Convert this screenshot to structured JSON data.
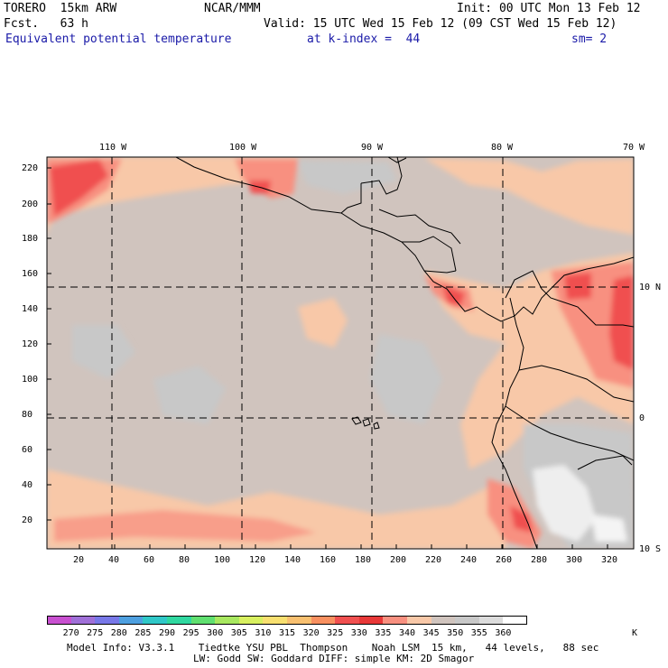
{
  "header": {
    "model": "TORERO  15km ARW",
    "org": "NCAR/MMM",
    "init": "Init: 00 UTC Mon 13 Feb 12",
    "fcst": "Fcst.   63 h",
    "valid": "Valid: 15 UTC Wed 15 Feb 12 (09 CST Wed 15 Feb 12)",
    "field": "Equivalent potential temperature",
    "level": "at k-index =  44",
    "smooth": "sm= 2"
  },
  "axes": {
    "top_lon": [
      "110 W",
      "100 W",
      "90 W",
      "80 W",
      "70 W"
    ],
    "right_lat": [
      "10 N",
      "0",
      "10 S"
    ],
    "left_y": [
      "220",
      "200",
      "180",
      "160",
      "140",
      "120",
      "100",
      "80",
      "60",
      "40",
      "20"
    ],
    "bottom_x": [
      "20",
      "40",
      "60",
      "80",
      "100",
      "120",
      "140",
      "160",
      "180",
      "200",
      "220",
      "240",
      "260",
      "280",
      "300",
      "320"
    ]
  },
  "colorbar": {
    "labels": [
      "270",
      "275",
      "280",
      "285",
      "290",
      "295",
      "300",
      "305",
      "310",
      "315",
      "320",
      "325",
      "330",
      "335",
      "340",
      "345",
      "350",
      "355",
      "360"
    ],
    "unit": "K",
    "colors": [
      "#c850d0",
      "#a070d8",
      "#7878e8",
      "#4ea0e0",
      "#30c8c8",
      "#30d8a0",
      "#60e070",
      "#a8e860",
      "#d8f060",
      "#f8e070",
      "#f8c070",
      "#f89060",
      "#f05050",
      "#e83838",
      "#f89080",
      "#f8c8a8",
      "#d0c4be",
      "#c8c8c8",
      "#dcdcdc",
      "#ffffff"
    ]
  },
  "footer": {
    "line1": "Model Info: V3.3.1    Tiedtke YSU PBL  Thompson    Noah LSM  15 km,   44 levels,   88 sec",
    "line2": "LW: Godd SW: Goddard DIFF: simple KM: 2D Smagor"
  }
}
